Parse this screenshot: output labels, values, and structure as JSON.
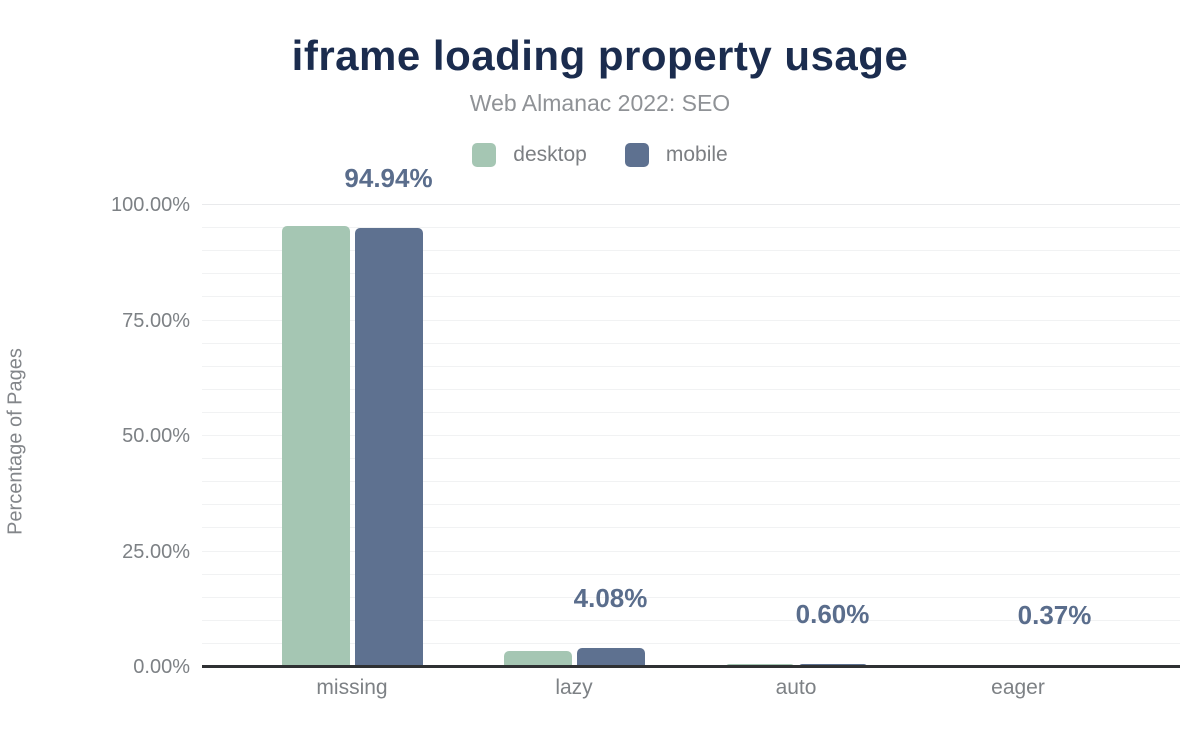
{
  "title": "iframe loading property usage",
  "subtitle": "Web Almanac 2022: SEO",
  "legend": [
    {
      "label": "desktop",
      "color": "#a5c6b3"
    },
    {
      "label": "mobile",
      "color": "#5e7190"
    }
  ],
  "y_axis": {
    "title": "Percentage of Pages",
    "ticks": [
      "100.00%",
      "75.00%",
      "50.00%",
      "25.00%",
      "0.00%"
    ]
  },
  "x_axis": {
    "categories": [
      "missing",
      "lazy",
      "auto",
      "eager"
    ]
  },
  "value_labels": [
    "94.94%",
    "4.08%",
    "0.60%",
    "0.37%"
  ],
  "chart_data": {
    "type": "bar",
    "title": "iframe loading property usage",
    "subtitle": "Web Almanac 2022: SEO",
    "categories": [
      "missing",
      "lazy",
      "auto",
      "eager"
    ],
    "series": [
      {
        "name": "desktop",
        "color": "#a5c6b3",
        "values": [
          95.5,
          3.5,
          0.65,
          0.4
        ]
      },
      {
        "name": "mobile",
        "color": "#5e7190",
        "values": [
          94.94,
          4.08,
          0.6,
          0.37
        ]
      }
    ],
    "data_labels": {
      "on_series": "mobile",
      "values": [
        "94.94%",
        "4.08%",
        "0.60%",
        "0.37%"
      ]
    },
    "xlabel": "",
    "ylabel": "Percentage of Pages",
    "ylim": [
      0,
      100
    ],
    "ytick_step": 25,
    "gridline_step": 5,
    "grid": true,
    "legend_position": "top"
  }
}
